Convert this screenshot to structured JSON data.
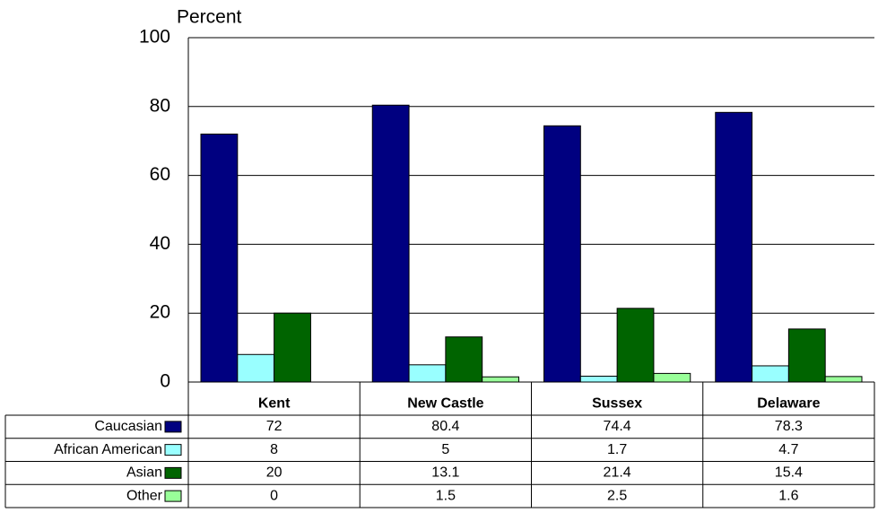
{
  "chart_data": {
    "type": "bar",
    "y_axis_label": "Percent",
    "categories": [
      "Kent",
      "New Castle",
      "Sussex",
      "Delaware"
    ],
    "series": [
      {
        "name": "Caucasian",
        "color": "#000080",
        "values": [
          72,
          80.4,
          74.4,
          78.3
        ]
      },
      {
        "name": "African American",
        "color": "#99ffff",
        "values": [
          8,
          5,
          1.7,
          4.7
        ]
      },
      {
        "name": "Asian",
        "color": "#006400",
        "values": [
          20,
          13.1,
          21.4,
          15.4
        ]
      },
      {
        "name": "Other",
        "color": "#99ff99",
        "values": [
          0,
          1.5,
          2.5,
          1.6
        ]
      }
    ],
    "ylim": [
      0,
      100
    ],
    "yticks": [
      0,
      20,
      40,
      60,
      80,
      100
    ],
    "grid": true,
    "data_table": true
  }
}
